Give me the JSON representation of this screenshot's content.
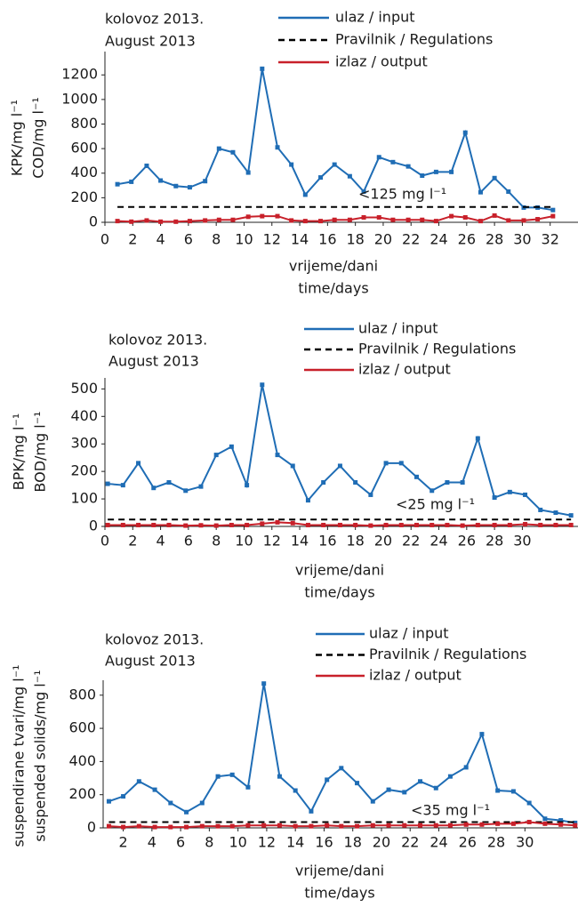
{
  "chart_data": [
    {
      "type": "line",
      "period": [
        "kolovoz 2013.",
        "August 2013"
      ],
      "ylabel": [
        "KPK/mg l⁻¹",
        "COD/mg l⁻¹"
      ],
      "xlabel": [
        "vrijeme/dani",
        "time/days"
      ],
      "annotation": "<125 mg l⁻¹",
      "xlim": [
        0,
        34
      ],
      "xticks": [
        0,
        2,
        4,
        6,
        8,
        10,
        12,
        14,
        16,
        18,
        20,
        22,
        24,
        26,
        28,
        30,
        32
      ],
      "ylim": [
        0,
        1390
      ],
      "yticks": [
        0,
        200,
        400,
        600,
        800,
        1000,
        1200
      ],
      "x": [
        0.9,
        1.9,
        3.0,
        4.0,
        5.1,
        6.1,
        7.2,
        8.2,
        9.2,
        10.3,
        11.3,
        12.4,
        13.4,
        14.4,
        15.5,
        16.5,
        17.6,
        18.6,
        19.7,
        20.7,
        21.8,
        22.8,
        23.8,
        24.9,
        25.9,
        27.0,
        28.0,
        29.0,
        30.1,
        31.1,
        32.2
      ],
      "series": [
        {
          "name": "ulaz / input",
          "color": "#1f6db5",
          "values": [
            310,
            330,
            460,
            340,
            295,
            285,
            335,
            600,
            570,
            405,
            1250,
            610,
            470,
            225,
            365,
            470,
            375,
            250,
            530,
            490,
            455,
            380,
            410,
            410,
            730,
            245,
            360,
            250,
            120,
            120,
            100
          ]
        },
        {
          "name": "Pravilnik / Regulations",
          "color": "#000000",
          "dash": true,
          "value": 125
        },
        {
          "name": "izlaz / output",
          "color": "#c8202a",
          "values": [
            10,
            5,
            15,
            5,
            5,
            10,
            15,
            20,
            20,
            45,
            50,
            50,
            15,
            10,
            10,
            20,
            20,
            40,
            40,
            20,
            20,
            20,
            10,
            50,
            40,
            10,
            55,
            15,
            15,
            25,
            50
          ]
        }
      ]
    },
    {
      "type": "line",
      "period": [
        "kolovoz 2013.",
        "August 2013"
      ],
      "ylabel": [
        "BPK/mg l⁻¹",
        "BOD/mg l⁻¹"
      ],
      "xlabel": [
        "vrijeme/dani",
        "time/days"
      ],
      "annotation": "<25 mg l⁻¹",
      "xlim": [
        0,
        34
      ],
      "xticks": [
        0,
        2,
        4,
        6,
        8,
        10,
        12,
        14,
        16,
        18,
        20,
        22,
        24,
        26,
        28,
        30
      ],
      "ylim": [
        0,
        540
      ],
      "yticks": [
        0,
        100,
        200,
        300,
        400,
        500
      ],
      "x": [
        0.2,
        1.3,
        2.4,
        3.5,
        4.6,
        5.8,
        6.9,
        8.0,
        9.1,
        10.2,
        11.3,
        12.4,
        13.5,
        14.6,
        15.7,
        16.9,
        18.0,
        19.1,
        20.2,
        21.3,
        22.4,
        23.5,
        24.6,
        25.7,
        26.8,
        28.0,
        29.1,
        30.2,
        31.3,
        32.4,
        33.5
      ],
      "series": [
        {
          "name": "ulaz / input",
          "color": "#1f6db5",
          "values": [
            155,
            150,
            230,
            140,
            160,
            130,
            145,
            260,
            290,
            150,
            515,
            260,
            220,
            95,
            160,
            220,
            160,
            115,
            230,
            230,
            180,
            130,
            160,
            160,
            320,
            105,
            125,
            115,
            60,
            50,
            40
          ]
        },
        {
          "name": "Pravilnik / Regulations",
          "color": "#000000",
          "dash": true,
          "value": 25
        },
        {
          "name": "izlaz / output",
          "color": "#c8202a",
          "values": [
            5,
            5,
            5,
            5,
            5,
            3,
            4,
            3,
            5,
            5,
            10,
            15,
            12,
            5,
            5,
            5,
            5,
            3,
            5,
            5,
            5,
            5,
            5,
            3,
            5,
            5,
            5,
            8,
            5,
            5,
            5
          ]
        }
      ]
    },
    {
      "type": "line",
      "period": [
        "kolovoz 2013.",
        "August 2013"
      ],
      "ylabel": [
        "suspendirane tvari/mg l⁻¹",
        "suspended solids/mg l⁻¹"
      ],
      "xlabel": [
        "vrijeme/dani",
        "time/days"
      ],
      "annotation": "<35 mg l⁻¹",
      "xlim": [
        0.6,
        33.7
      ],
      "xticks": [
        2,
        4,
        6,
        8,
        10,
        12,
        14,
        16,
        18,
        20,
        22,
        24,
        26,
        28,
        30
      ],
      "ylim": [
        0,
        890
      ],
      "yticks": [
        0,
        200,
        400,
        600,
        800
      ],
      "x": [
        1.0,
        2.0,
        3.1,
        4.2,
        5.3,
        6.4,
        7.5,
        8.6,
        9.6,
        10.7,
        11.8,
        12.9,
        14.0,
        15.1,
        16.2,
        17.2,
        18.3,
        19.4,
        20.5,
        21.6,
        22.7,
        23.8,
        24.8,
        25.9,
        27.0,
        28.1,
        29.2,
        30.3,
        31.4,
        32.5,
        33.5
      ],
      "series": [
        {
          "name": "ulaz / input",
          "color": "#1f6db5",
          "values": [
            160,
            190,
            280,
            230,
            150,
            95,
            150,
            310,
            320,
            245,
            870,
            310,
            225,
            100,
            290,
            360,
            270,
            160,
            230,
            215,
            280,
            240,
            310,
            365,
            565,
            225,
            220,
            150,
            55,
            45,
            30
          ]
        },
        {
          "name": "Pravilnik / Regulations",
          "color": "#000000",
          "dash": true,
          "value": 35
        },
        {
          "name": "izlaz / output",
          "color": "#c8202a",
          "values": [
            10,
            5,
            10,
            5,
            5,
            5,
            10,
            10,
            10,
            15,
            15,
            15,
            10,
            10,
            15,
            10,
            10,
            15,
            15,
            15,
            15,
            15,
            15,
            20,
            20,
            25,
            25,
            35,
            25,
            20,
            15
          ]
        }
      ]
    }
  ]
}
